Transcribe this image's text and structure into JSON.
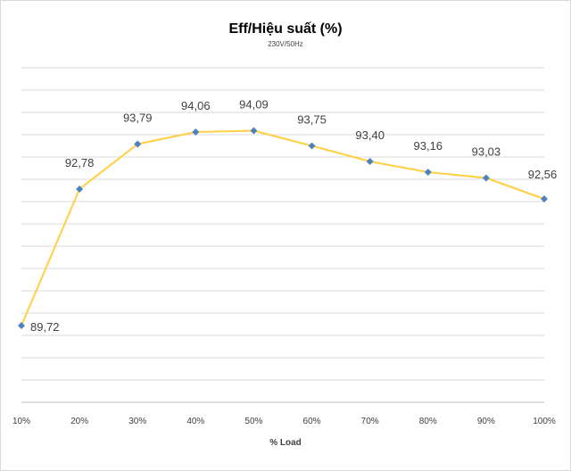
{
  "chart_data": {
    "type": "line",
    "title": "Eff/Hiệu suất (%)",
    "subtitle": "230V/50Hz",
    "xlabel": "% Load",
    "ylabel": "",
    "categories": [
      "10%",
      "20%",
      "30%",
      "40%",
      "50%",
      "60%",
      "70%",
      "80%",
      "90%",
      "100%"
    ],
    "series": [
      {
        "name": "",
        "values": [
          89.72,
          92.78,
          93.79,
          94.06,
          94.09,
          93.75,
          93.4,
          93.16,
          93.03,
          92.56
        ],
        "labels": [
          "89,72",
          "92,78",
          "93,79",
          "94,06",
          "94,09",
          "93,75",
          "93,40",
          "93,16",
          "93,03",
          "92,56"
        ]
      }
    ],
    "ylim": [
      88,
      95.5
    ],
    "grid": "horizontal",
    "legend": "none",
    "colors": {
      "line": "#FFD042",
      "marker": "#4F81BD",
      "grid": "#d9d9d9",
      "axis": "#bfbfbf"
    }
  }
}
